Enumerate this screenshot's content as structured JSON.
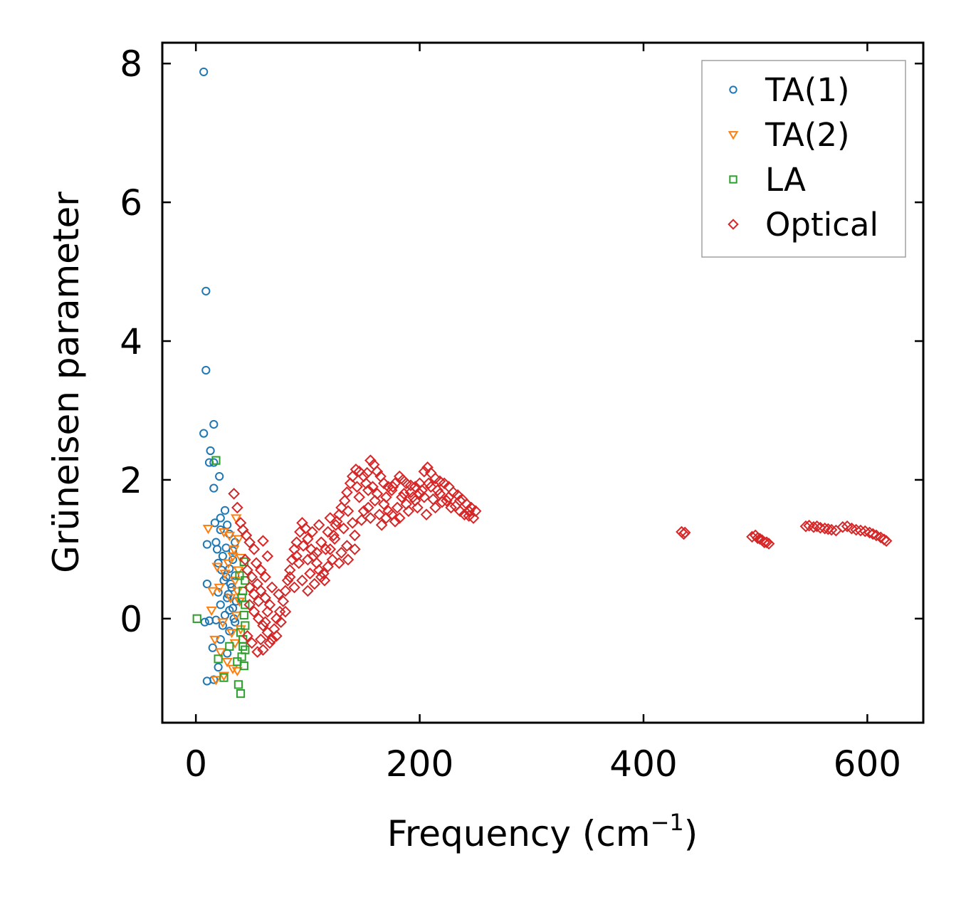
{
  "chart_data": {
    "type": "scatter",
    "title": "",
    "xlabel": "Frequency (cm",
    "xlabel_superscript": "−1",
    "xlabel_suffix": ")",
    "ylabel": "Grüneisen parameter",
    "xlim": [
      -30,
      650
    ],
    "ylim": [
      -1.5,
      8.3
    ],
    "xticks": [
      0,
      200,
      400,
      600
    ],
    "xtick_labels": [
      "0",
      "200",
      "400",
      "600"
    ],
    "yticks": [
      0,
      2,
      4,
      6,
      8
    ],
    "ytick_labels": [
      "0",
      "2",
      "4",
      "6",
      "8"
    ],
    "grid": false,
    "legend_position": "top-right",
    "series": [
      {
        "name": "TA(1)",
        "marker": "circle",
        "color": "#1f77b4",
        "points": [
          [
            7,
            7.88
          ],
          [
            9,
            4.72
          ],
          [
            9,
            3.58
          ],
          [
            16,
            2.8
          ],
          [
            7,
            2.67
          ],
          [
            13,
            2.42
          ],
          [
            12,
            2.25
          ],
          [
            16,
            2.25
          ],
          [
            21,
            2.05
          ],
          [
            16,
            1.88
          ],
          [
            26,
            1.56
          ],
          [
            22,
            1.45
          ],
          [
            17,
            1.38
          ],
          [
            28,
            1.35
          ],
          [
            22,
            1.28
          ],
          [
            30,
            1.22
          ],
          [
            18,
            1.1
          ],
          [
            10,
            1.07
          ],
          [
            27,
            1.02
          ],
          [
            33,
            0.98
          ],
          [
            24,
            0.9
          ],
          [
            20,
            0.8
          ],
          [
            30,
            0.72
          ],
          [
            35,
            0.62
          ],
          [
            25,
            0.55
          ],
          [
            10,
            0.5
          ],
          [
            32,
            0.45
          ],
          [
            20,
            0.38
          ],
          [
            28,
            0.3
          ],
          [
            36,
            0.25
          ],
          [
            22,
            0.2
          ],
          [
            30,
            0.12
          ],
          [
            26,
            0.05
          ],
          [
            34,
            0.0
          ],
          [
            18,
            -0.02
          ],
          [
            12,
            -0.03
          ],
          [
            8,
            -0.05
          ],
          [
            24,
            -0.1
          ],
          [
            30,
            -0.18
          ],
          [
            22,
            -0.3
          ],
          [
            15,
            -0.42
          ],
          [
            28,
            -0.5
          ],
          [
            20,
            -0.7
          ],
          [
            10,
            -0.9
          ],
          [
            16,
            -0.88
          ],
          [
            33,
            0.85
          ],
          [
            35,
            1.1
          ],
          [
            31,
            0.5
          ],
          [
            29,
            0.35
          ],
          [
            33,
            0.15
          ],
          [
            35,
            -0.05
          ],
          [
            27,
            0.6
          ],
          [
            19,
            1.0
          ],
          [
            23,
            0.7
          ]
        ]
      },
      {
        "name": "TA(2)",
        "marker": "triangle-down",
        "color": "#ff7f0e",
        "points": [
          [
            11,
            1.3
          ],
          [
            36,
            1.45
          ],
          [
            25,
            1.25
          ],
          [
            30,
            1.2
          ],
          [
            38,
            1.15
          ],
          [
            19,
            0.75
          ],
          [
            33,
            0.9
          ],
          [
            40,
            0.88
          ],
          [
            26,
            0.65
          ],
          [
            35,
            0.55
          ],
          [
            21,
            0.45
          ],
          [
            15,
            0.4
          ],
          [
            31,
            0.3
          ],
          [
            39,
            0.25
          ],
          [
            14,
            0.12
          ],
          [
            36,
            0.05
          ],
          [
            24,
            -0.05
          ],
          [
            40,
            -0.15
          ],
          [
            17,
            -0.3
          ],
          [
            35,
            -0.35
          ],
          [
            22,
            -0.48
          ],
          [
            28,
            -0.62
          ],
          [
            33,
            -0.72
          ],
          [
            37,
            -0.75
          ],
          [
            25,
            -0.82
          ],
          [
            18,
            -0.88
          ],
          [
            38,
            0.7
          ],
          [
            34,
            1.0
          ],
          [
            29,
            0.8
          ],
          [
            37,
            0.4
          ],
          [
            32,
            -0.2
          ]
        ]
      },
      {
        "name": "LA",
        "marker": "square",
        "color": "#2ca02c",
        "points": [
          [
            1,
            0.0
          ],
          [
            18,
            2.28
          ],
          [
            43,
            0.82
          ],
          [
            44,
            0.55
          ],
          [
            42,
            0.4
          ],
          [
            44,
            0.2
          ],
          [
            43,
            0.05
          ],
          [
            44,
            -0.1
          ],
          [
            42,
            -0.3
          ],
          [
            44,
            -0.45
          ],
          [
            41,
            -0.55
          ],
          [
            43,
            -0.68
          ],
          [
            38,
            -0.95
          ],
          [
            40,
            -1.08
          ],
          [
            20,
            -0.58
          ],
          [
            25,
            -0.85
          ],
          [
            39,
            0.62
          ],
          [
            41,
            0.3
          ],
          [
            40,
            -0.2
          ],
          [
            42,
            -0.4
          ],
          [
            37,
            -0.62
          ],
          [
            30,
            -0.4
          ]
        ]
      },
      {
        "name": "Optical",
        "marker": "diamond",
        "color": "#d62728",
        "points": [
          [
            34,
            1.8
          ],
          [
            37,
            1.6
          ],
          [
            40,
            1.38
          ],
          [
            42,
            1.28
          ],
          [
            45,
            1.2
          ],
          [
            48,
            1.1
          ],
          [
            52,
            1.0
          ],
          [
            60,
            1.12
          ],
          [
            64,
            0.9
          ],
          [
            44,
            0.85
          ],
          [
            46,
            0.7
          ],
          [
            50,
            0.6
          ],
          [
            55,
            0.5
          ],
          [
            58,
            0.4
          ],
          [
            62,
            0.3
          ],
          [
            66,
            0.2
          ],
          [
            48,
            0.2
          ],
          [
            52,
            0.1
          ],
          [
            56,
            0.0
          ],
          [
            60,
            -0.1
          ],
          [
            64,
            -0.2
          ],
          [
            68,
            -0.3
          ],
          [
            50,
            -0.35
          ],
          [
            55,
            -0.48
          ],
          [
            60,
            -0.45
          ],
          [
            70,
            -0.15
          ],
          [
            72,
            0.0
          ],
          [
            75,
            0.1
          ],
          [
            78,
            0.25
          ],
          [
            80,
            0.4
          ],
          [
            82,
            0.55
          ],
          [
            84,
            0.7
          ],
          [
            86,
            0.85
          ],
          [
            88,
            1.0
          ],
          [
            90,
            1.1
          ],
          [
            93,
            1.25
          ],
          [
            95,
            1.38
          ],
          [
            98,
            1.3
          ],
          [
            100,
            1.15
          ],
          [
            103,
            1.0
          ],
          [
            105,
            0.9
          ],
          [
            108,
            0.8
          ],
          [
            110,
            0.7
          ],
          [
            112,
            0.6
          ],
          [
            115,
            0.55
          ],
          [
            118,
            0.75
          ],
          [
            120,
            1.0
          ],
          [
            123,
            1.2
          ],
          [
            125,
            1.35
          ],
          [
            128,
            1.5
          ],
          [
            130,
            1.6
          ],
          [
            133,
            1.7
          ],
          [
            135,
            1.82
          ],
          [
            138,
            1.95
          ],
          [
            140,
            2.05
          ],
          [
            143,
            2.15
          ],
          [
            146,
            2.12
          ],
          [
            150,
            2.05
          ],
          [
            153,
            2.1
          ],
          [
            156,
            2.28
          ],
          [
            159,
            2.22
          ],
          [
            162,
            2.12
          ],
          [
            165,
            2.05
          ],
          [
            168,
            1.95
          ],
          [
            172,
            1.9
          ],
          [
            175,
            1.85
          ],
          [
            178,
            1.95
          ],
          [
            182,
            2.05
          ],
          [
            185,
            2.0
          ],
          [
            188,
            1.95
          ],
          [
            192,
            1.92
          ],
          [
            196,
            1.9
          ],
          [
            200,
            1.95
          ],
          [
            204,
            2.12
          ],
          [
            207,
            2.18
          ],
          [
            210,
            2.1
          ],
          [
            214,
            2.02
          ],
          [
            218,
            1.98
          ],
          [
            222,
            1.95
          ],
          [
            226,
            1.9
          ],
          [
            230,
            1.82
          ],
          [
            234,
            1.78
          ],
          [
            238,
            1.72
          ],
          [
            242,
            1.65
          ],
          [
            246,
            1.6
          ],
          [
            250,
            1.55
          ],
          [
            244,
            1.48
          ],
          [
            236,
            1.55
          ],
          [
            228,
            1.6
          ],
          [
            220,
            1.68
          ],
          [
            212,
            1.72
          ],
          [
            204,
            1.75
          ],
          [
            196,
            1.7
          ],
          [
            188,
            1.65
          ],
          [
            180,
            1.6
          ],
          [
            172,
            1.55
          ],
          [
            164,
            1.5
          ],
          [
            156,
            1.45
          ],
          [
            148,
            1.42
          ],
          [
            140,
            1.38
          ],
          [
            132,
            1.3
          ],
          [
            124,
            1.15
          ],
          [
            116,
            1.0
          ],
          [
            108,
            0.95
          ],
          [
            100,
            0.85
          ],
          [
            92,
            0.8
          ],
          [
            84,
            0.6
          ],
          [
            130,
            0.95
          ],
          [
            128,
            0.8
          ],
          [
            135,
            1.05
          ],
          [
            142,
            1.2
          ],
          [
            150,
            1.55
          ],
          [
            160,
            1.7
          ],
          [
            170,
            1.75
          ],
          [
            175,
            1.5
          ],
          [
            166,
            1.35
          ],
          [
            182,
            1.45
          ],
          [
            190,
            1.55
          ],
          [
            198,
            1.6
          ],
          [
            206,
            1.5
          ],
          [
            214,
            1.6
          ],
          [
            224,
            1.7
          ],
          [
            232,
            1.62
          ],
          [
            240,
            1.5
          ],
          [
            248,
            1.45
          ],
          [
            110,
            1.35
          ],
          [
            118,
            1.25
          ],
          [
            126,
            1.4
          ],
          [
            136,
            1.55
          ],
          [
            146,
            1.75
          ],
          [
            154,
            1.85
          ],
          [
            162,
            1.8
          ],
          [
            168,
            1.65
          ],
          [
            186,
            1.8
          ],
          [
            194,
            1.75
          ],
          [
            202,
            1.85
          ],
          [
            210,
            1.9
          ],
          [
            218,
            1.8
          ],
          [
            226,
            1.75
          ],
          [
            95,
            0.55
          ],
          [
            102,
            0.65
          ],
          [
            88,
            0.45
          ],
          [
            80,
            0.1
          ],
          [
            76,
            -0.05
          ],
          [
            72,
            -0.25
          ],
          [
            66,
            -0.35
          ],
          [
            58,
            -0.3
          ],
          [
            62,
            0.6
          ],
          [
            54,
            0.8
          ],
          [
            68,
            0.45
          ],
          [
            74,
            0.35
          ],
          [
            90,
            0.9
          ],
          [
            96,
            1.05
          ],
          [
            104,
            1.25
          ],
          [
            112,
            1.1
          ],
          [
            120,
            1.45
          ],
          [
            144,
            1.9
          ],
          [
            152,
            1.95
          ],
          [
            158,
            1.9
          ],
          [
            176,
            1.9
          ],
          [
            184,
            1.75
          ],
          [
            192,
            1.82
          ],
          [
            200,
            1.8
          ],
          [
            208,
            1.95
          ],
          [
            216,
            1.85
          ],
          [
            236,
            1.7
          ],
          [
            244,
            1.55
          ],
          [
            100,
            0.4
          ],
          [
            106,
            0.5
          ],
          [
            114,
            0.65
          ],
          [
            122,
            0.85
          ],
          [
            136,
            0.85
          ],
          [
            142,
            1.0
          ],
          [
            170,
            1.45
          ],
          [
            178,
            1.4
          ],
          [
            154,
            1.6
          ],
          [
            46,
            -0.25
          ],
          [
            48,
            0.45
          ],
          [
            52,
            0.35
          ],
          [
            56,
            0.25
          ],
          [
            58,
            0.7
          ],
          [
            62,
            -0.05
          ],
          [
            64,
            0.1
          ],
          [
            434,
            1.25
          ],
          [
            436,
            1.22
          ],
          [
            437,
            1.24
          ],
          [
            497,
            1.18
          ],
          [
            500,
            1.2
          ],
          [
            502,
            1.16
          ],
          [
            504,
            1.15
          ],
          [
            506,
            1.13
          ],
          [
            508,
            1.1
          ],
          [
            510,
            1.1
          ],
          [
            512,
            1.08
          ],
          [
            545,
            1.33
          ],
          [
            548,
            1.34
          ],
          [
            552,
            1.32
          ],
          [
            555,
            1.33
          ],
          [
            558,
            1.31
          ],
          [
            562,
            1.3
          ],
          [
            565,
            1.29
          ],
          [
            568,
            1.28
          ],
          [
            572,
            1.27
          ],
          [
            578,
            1.32
          ],
          [
            582,
            1.33
          ],
          [
            586,
            1.3
          ],
          [
            590,
            1.28
          ],
          [
            594,
            1.27
          ],
          [
            598,
            1.26
          ],
          [
            602,
            1.24
          ],
          [
            605,
            1.22
          ],
          [
            608,
            1.2
          ],
          [
            612,
            1.17
          ],
          [
            615,
            1.14
          ],
          [
            617,
            1.12
          ]
        ]
      }
    ]
  }
}
